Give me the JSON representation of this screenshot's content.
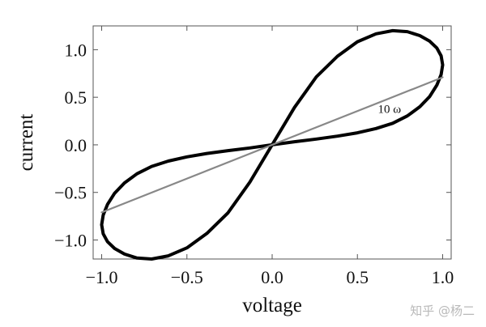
{
  "chart_data": {
    "type": "line",
    "xlabel": "voltage",
    "ylabel": "current",
    "xlim": [
      -1.05,
      1.05
    ],
    "ylim": [
      -1.2,
      1.25
    ],
    "xticks": [
      -1.0,
      -0.5,
      0.0,
      0.5,
      1.0
    ],
    "yticks": [
      -1.0,
      -0.5,
      0.0,
      0.5,
      1.0
    ],
    "xtick_labels": [
      "−1.0",
      "−0.5",
      "0.0",
      "0.5",
      "1.0"
    ],
    "ytick_labels": [
      "−1.0",
      "−0.5",
      "0.0",
      "0.5",
      "1.0"
    ],
    "grid": false,
    "series": [
      {
        "color": "#000000",
        "x": [
          0.0,
          0.131,
          0.259,
          0.383,
          0.5,
          0.609,
          0.707,
          0.793,
          0.866,
          0.924,
          0.966,
          0.991,
          1.0,
          0.991,
          0.966,
          0.924,
          0.866,
          0.793,
          0.707,
          0.609,
          0.5,
          0.383,
          0.259,
          0.131,
          0.0,
          -0.131,
          -0.259,
          -0.383,
          -0.5,
          -0.609,
          -0.707,
          -0.793,
          -0.866,
          -0.924,
          -0.966,
          -0.991,
          -1.0,
          -0.991,
          -0.966,
          -0.924,
          -0.866,
          -0.793,
          -0.707,
          -0.609,
          -0.5,
          -0.383,
          -0.259,
          -0.131,
          0.0
        ],
        "y": [
          0.0,
          0.393,
          0.714,
          0.931,
          1.083,
          1.167,
          1.2,
          1.19,
          1.148,
          1.089,
          1.018,
          0.935,
          0.84,
          0.739,
          0.627,
          0.508,
          0.4,
          0.304,
          0.227,
          0.171,
          0.126,
          0.091,
          0.061,
          0.033,
          0.0,
          -0.393,
          -0.714,
          -0.931,
          -1.083,
          -1.167,
          -1.2,
          -1.19,
          -1.148,
          -1.089,
          -1.018,
          -0.935,
          -0.84,
          -0.739,
          -0.627,
          -0.508,
          -0.4,
          -0.304,
          -0.227,
          -0.171,
          -0.126,
          -0.091,
          -0.061,
          -0.033,
          0.0
        ]
      },
      {
        "color": "#888888",
        "x": [
          -1.0,
          1.0
        ],
        "y": [
          -0.71,
          0.71
        ]
      }
    ],
    "annotations": [
      {
        "text": "10 ω",
        "x": 0.62,
        "y": 0.38
      }
    ]
  },
  "watermark": "知乎 @杨二"
}
